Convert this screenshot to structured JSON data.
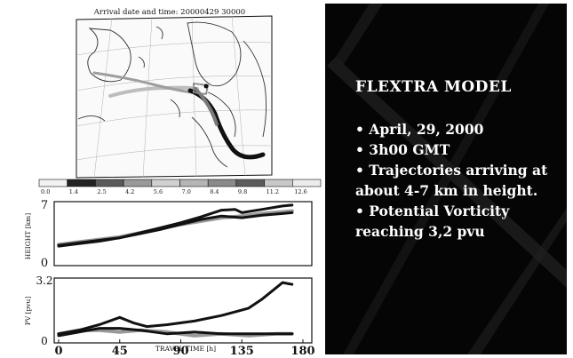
{
  "figure": {
    "map_title": "Arrival date and time: 20000429  30000",
    "colorbar_ticks": [
      "0.0",
      "1.4",
      "2.5",
      "4.2",
      "5.6",
      "7.0",
      "8.4",
      "9.8",
      "11.2",
      "12.6"
    ],
    "colorbar_colors": [
      "#f2f2f2",
      "#222222",
      "#5a5a5a",
      "#9a9a9a",
      "#d0d0d0",
      "#b5b5b5",
      "#8a8a8a",
      "#5c5c5c",
      "#c8c8c8",
      "#ececec"
    ],
    "height_axis_label": "HEIGHT [km]",
    "height_top_label": "7",
    "height_bottom_label": "0",
    "pv_axis_label": "PV [pvu]",
    "pv_top_label": "3.2",
    "pv_bottom_label": "0",
    "x_tick_labels": [
      "0",
      "45",
      "90",
      "135",
      "180"
    ],
    "x_axis_label": "TRAVEL TIME [h]"
  },
  "slide": {
    "title": "FLEXTRA MODEL",
    "bullets": [
      "• April, 29, 2000",
      "• 3h00 GMT",
      "• Trajectories arriving at about 4-7 km in height.",
      "• Potential Vorticity reaching 3,2 pvu"
    ]
  },
  "chart_data": [
    {
      "type": "line",
      "xlabel": "TRAVEL TIME [h]",
      "ylabel": "HEIGHT [km]",
      "xlim": [
        0,
        180
      ],
      "ylim": [
        0,
        7
      ],
      "series": [
        {
          "x": [
            0,
            15,
            30,
            45,
            60,
            75,
            90,
            105,
            120,
            135,
            150,
            165,
            172
          ],
          "values": [
            2.1,
            2.4,
            2.7,
            3.0,
            3.5,
            4.0,
            4.6,
            5.2,
            5.6,
            5.4,
            5.7,
            5.9,
            6.0
          ]
        },
        {
          "x": [
            0,
            15,
            30,
            45,
            60,
            75,
            90,
            105,
            120,
            130,
            135,
            150,
            165,
            172
          ],
          "values": [
            2.0,
            2.3,
            2.6,
            3.0,
            3.6,
            4.2,
            4.8,
            5.5,
            6.3,
            6.4,
            6.0,
            6.4,
            6.8,
            6.9
          ]
        },
        {
          "x": [
            0,
            15,
            30,
            45,
            60,
            75,
            90,
            105,
            120,
            135,
            150,
            165,
            172
          ],
          "values": [
            2.2,
            2.5,
            2.8,
            3.1,
            3.6,
            4.1,
            4.6,
            5.0,
            5.4,
            5.6,
            5.9,
            6.1,
            6.2
          ]
        }
      ]
    },
    {
      "type": "line",
      "xlabel": "TRAVEL TIME [h]",
      "ylabel": "PV [pvu]",
      "xlim": [
        0,
        180
      ],
      "ylim": [
        0,
        3.2
      ],
      "series": [
        {
          "x": [
            0,
            15,
            30,
            45,
            55,
            65,
            80,
            100,
            120,
            140,
            150,
            160,
            165,
            172
          ],
          "values": [
            0.3,
            0.5,
            0.8,
            1.2,
            0.9,
            0.7,
            0.8,
            1.0,
            1.3,
            1.7,
            2.2,
            2.8,
            3.1,
            3.0
          ]
        },
        {
          "x": [
            0,
            15,
            30,
            45,
            60,
            80,
            100,
            120,
            140,
            160,
            172
          ],
          "values": [
            0.2,
            0.4,
            0.6,
            0.6,
            0.5,
            0.3,
            0.4,
            0.3,
            0.3,
            0.3,
            0.3
          ]
        },
        {
          "x": [
            0,
            15,
            30,
            45,
            60,
            80,
            100,
            120,
            140,
            160,
            172
          ],
          "values": [
            0.3,
            0.5,
            0.5,
            0.4,
            0.5,
            0.4,
            0.2,
            0.3,
            0.2,
            0.3,
            0.3
          ]
        }
      ]
    }
  ]
}
